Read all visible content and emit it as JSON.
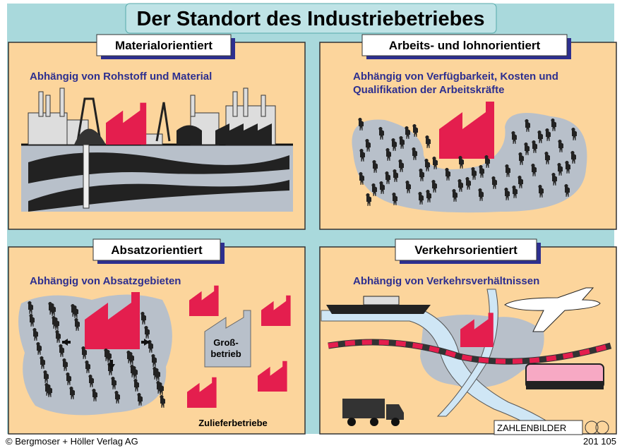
{
  "title": "Der Standort des Industriebetriebes",
  "panels": [
    {
      "heading": "Materialorientiert",
      "subtitle": [
        "Abhängig von Rohstoff und Material"
      ]
    },
    {
      "heading": "Arbeits- und lohnorientiert",
      "subtitle": [
        "Abhängig von Verfügbarkeit, Kosten und",
        "Qualifikation der Arbeitskräfte"
      ]
    },
    {
      "heading": "Absatzorientiert",
      "subtitle": [
        "Abhängig von Absatzgebieten"
      ],
      "center_label": [
        "Groß-",
        "betrieb"
      ],
      "supplier_label": "Zulieferbetriebe"
    },
    {
      "heading": "Verkehrsorientiert",
      "subtitle": [
        "Abhängig von Verkehrsverhältnissen"
      ],
      "logo": "ZAHLENBILDER"
    }
  ],
  "footer": {
    "publisher": "© Bergmoser + Höller Verlag AG",
    "number": "201 105"
  }
}
